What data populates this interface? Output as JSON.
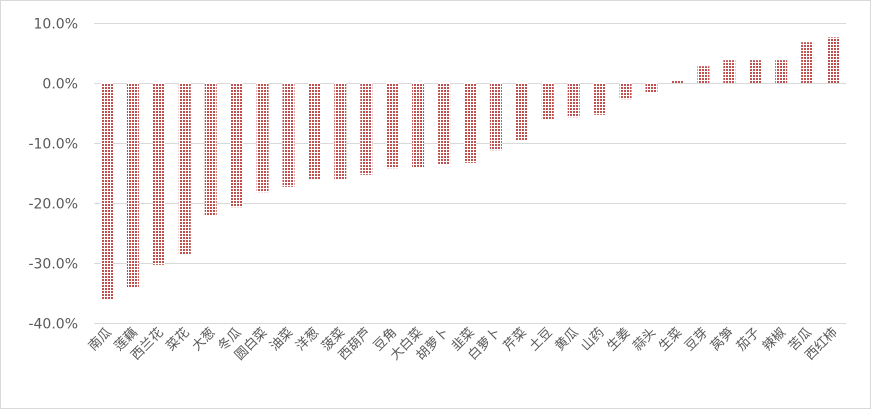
{
  "chart_data": {
    "type": "bar",
    "title": "",
    "xlabel": "",
    "ylabel": "",
    "ylim": [
      -40,
      10
    ],
    "yticks": [
      10,
      0,
      -10,
      -20,
      -30,
      -40
    ],
    "ytick_labels": [
      "10.0%",
      "0.0%",
      "-10.0%",
      "-20.0%",
      "-30.0%",
      "-40.0%"
    ],
    "grid": true,
    "legend": "none",
    "bar_color": "#c0504d",
    "categories": [
      "南瓜",
      "莲藕",
      "西兰花",
      "菜花",
      "大葱",
      "冬瓜",
      "圆白菜",
      "油菜",
      "洋葱",
      "菠菜",
      "西葫芦",
      "豆角",
      "大白菜",
      "胡萝卜",
      "韭菜",
      "白萝卜",
      "芹菜",
      "土豆",
      "黄瓜",
      "山药",
      "生姜",
      "蒜头",
      "生菜",
      "豆芽",
      "莴笋",
      "茄子",
      "辣椒",
      "苦瓜",
      "西红柿"
    ],
    "values": [
      -36.0,
      -34.0,
      -30.3,
      -28.5,
      -22.0,
      -20.7,
      -18.2,
      -17.3,
      -16.0,
      -16.0,
      -15.3,
      -14.2,
      -14.0,
      -13.6,
      -13.3,
      -11.2,
      -9.5,
      -6.0,
      -5.7,
      -5.3,
      -2.7,
      -1.6,
      0.5,
      2.8,
      3.8,
      3.8,
      3.8,
      6.8,
      7.6
    ]
  }
}
